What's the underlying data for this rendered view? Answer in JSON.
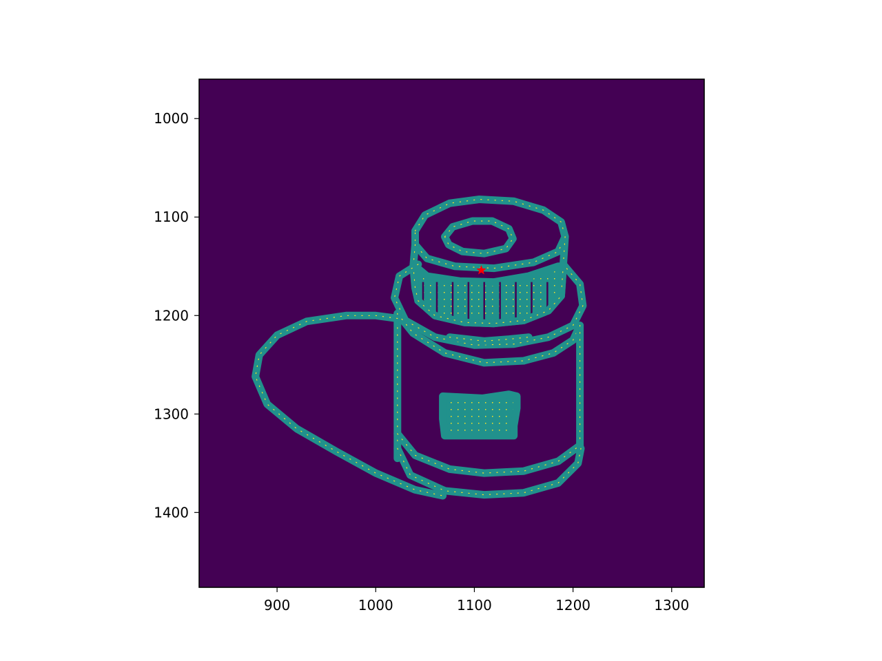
{
  "chart_data": {
    "type": "heatmap",
    "title": "",
    "xlabel": "",
    "ylabel": "",
    "xlim": [
      821,
      1333
    ],
    "ylim": [
      1476,
      960
    ],
    "y_inverted": true,
    "x_ticks": [
      900,
      1000,
      1100,
      1200,
      1300
    ],
    "y_ticks": [
      1000,
      1100,
      1200,
      1300,
      1400
    ],
    "grid": false,
    "colormap": "viridis",
    "colors": {
      "background": "#440154",
      "edge": "#21918c",
      "highlight": "#fde725",
      "marker": "#ff0000"
    },
    "marker": {
      "shape": "star",
      "x": 1107,
      "y": 1154
    },
    "outline_strokes": [
      {
        "name": "lid-top-outer",
        "points": [
          [
            1040,
            1114
          ],
          [
            1050,
            1098
          ],
          [
            1075,
            1086
          ],
          [
            1105,
            1082
          ],
          [
            1140,
            1084
          ],
          [
            1170,
            1093
          ],
          [
            1188,
            1105
          ],
          [
            1192,
            1120
          ],
          [
            1185,
            1135
          ],
          [
            1160,
            1146
          ],
          [
            1120,
            1152
          ],
          [
            1080,
            1150
          ],
          [
            1052,
            1142
          ],
          [
            1040,
            1128
          ],
          [
            1040,
            1114
          ]
        ]
      },
      {
        "name": "lid-top-inner",
        "points": [
          [
            1070,
            1120
          ],
          [
            1078,
            1110
          ],
          [
            1098,
            1104
          ],
          [
            1118,
            1104
          ],
          [
            1135,
            1112
          ],
          [
            1139,
            1122
          ],
          [
            1132,
            1132
          ],
          [
            1110,
            1137
          ],
          [
            1088,
            1135
          ],
          [
            1074,
            1128
          ],
          [
            1070,
            1120
          ]
        ]
      },
      {
        "name": "lid-left-side",
        "points": [
          [
            1040,
            1128
          ],
          [
            1038,
            1150
          ],
          [
            1040,
            1172
          ],
          [
            1043,
            1185
          ]
        ]
      },
      {
        "name": "lid-right-side",
        "points": [
          [
            1192,
            1120
          ],
          [
            1190,
            1150
          ],
          [
            1188,
            1180
          ]
        ]
      },
      {
        "name": "lid-bottom",
        "points": [
          [
            1043,
            1185
          ],
          [
            1060,
            1200
          ],
          [
            1090,
            1207
          ],
          [
            1120,
            1208
          ],
          [
            1150,
            1205
          ],
          [
            1175,
            1195
          ],
          [
            1188,
            1180
          ]
        ]
      },
      {
        "name": "jar-shoulder",
        "points": [
          [
            1043,
            1148
          ],
          [
            1024,
            1160
          ],
          [
            1019,
            1182
          ],
          [
            1030,
            1205
          ],
          [
            1060,
            1222
          ],
          [
            1100,
            1230
          ],
          [
            1140,
            1229
          ],
          [
            1175,
            1222
          ],
          [
            1200,
            1210
          ],
          [
            1210,
            1190
          ],
          [
            1207,
            1168
          ],
          [
            1190,
            1148
          ]
        ]
      },
      {
        "name": "jar-neck",
        "points": [
          [
            1022,
            1198
          ],
          [
            1038,
            1218
          ],
          [
            1070,
            1238
          ],
          [
            1110,
            1248
          ],
          [
            1150,
            1246
          ],
          [
            1180,
            1238
          ],
          [
            1200,
            1225
          ],
          [
            1207,
            1210
          ]
        ]
      },
      {
        "name": "neck-lip",
        "points": [
          [
            1075,
            1222
          ],
          [
            1110,
            1226
          ],
          [
            1135,
            1224
          ],
          [
            1155,
            1222
          ]
        ]
      },
      {
        "name": "jar-left-wall",
        "points": [
          [
            1022,
            1198
          ],
          [
            1022,
            1260
          ],
          [
            1022,
            1345
          ]
        ]
      },
      {
        "name": "jar-right-wall",
        "points": [
          [
            1207,
            1210
          ],
          [
            1207,
            1275
          ],
          [
            1207,
            1335
          ]
        ]
      },
      {
        "name": "jar-base-upper",
        "points": [
          [
            1022,
            1320
          ],
          [
            1040,
            1342
          ],
          [
            1075,
            1356
          ],
          [
            1110,
            1360
          ],
          [
            1150,
            1358
          ],
          [
            1185,
            1348
          ],
          [
            1207,
            1332
          ]
        ]
      },
      {
        "name": "jar-base-lower",
        "points": [
          [
            1022,
            1335
          ],
          [
            1035,
            1362
          ],
          [
            1070,
            1378
          ],
          [
            1110,
            1382
          ],
          [
            1150,
            1380
          ],
          [
            1185,
            1370
          ],
          [
            1205,
            1350
          ],
          [
            1208,
            1335
          ]
        ]
      },
      {
        "name": "shadow",
        "points": [
          [
            1022,
            1203
          ],
          [
            1000,
            1200
          ],
          [
            970,
            1200
          ],
          [
            930,
            1206
          ],
          [
            900,
            1220
          ],
          [
            882,
            1240
          ],
          [
            878,
            1262
          ],
          [
            890,
            1290
          ],
          [
            920,
            1315
          ],
          [
            960,
            1338
          ],
          [
            1000,
            1360
          ],
          [
            1040,
            1377
          ],
          [
            1068,
            1383
          ]
        ]
      }
    ],
    "filled_regions": [
      {
        "name": "lid-ridges",
        "points": [
          [
            1040,
            1150
          ],
          [
            1052,
            1160
          ],
          [
            1085,
            1165
          ],
          [
            1120,
            1166
          ],
          [
            1155,
            1160
          ],
          [
            1185,
            1150
          ],
          [
            1190,
            1150
          ],
          [
            1188,
            1180
          ],
          [
            1175,
            1195
          ],
          [
            1150,
            1205
          ],
          [
            1120,
            1208
          ],
          [
            1090,
            1207
          ],
          [
            1060,
            1200
          ],
          [
            1043,
            1185
          ]
        ]
      },
      {
        "name": "label-block",
        "points": [
          [
            1068,
            1282
          ],
          [
            1108,
            1284
          ],
          [
            1135,
            1280
          ],
          [
            1143,
            1282
          ],
          [
            1143,
            1294
          ],
          [
            1140,
            1312
          ],
          [
            1140,
            1322
          ],
          [
            1108,
            1322
          ],
          [
            1070,
            1322
          ],
          [
            1068,
            1305
          ]
        ]
      }
    ]
  }
}
